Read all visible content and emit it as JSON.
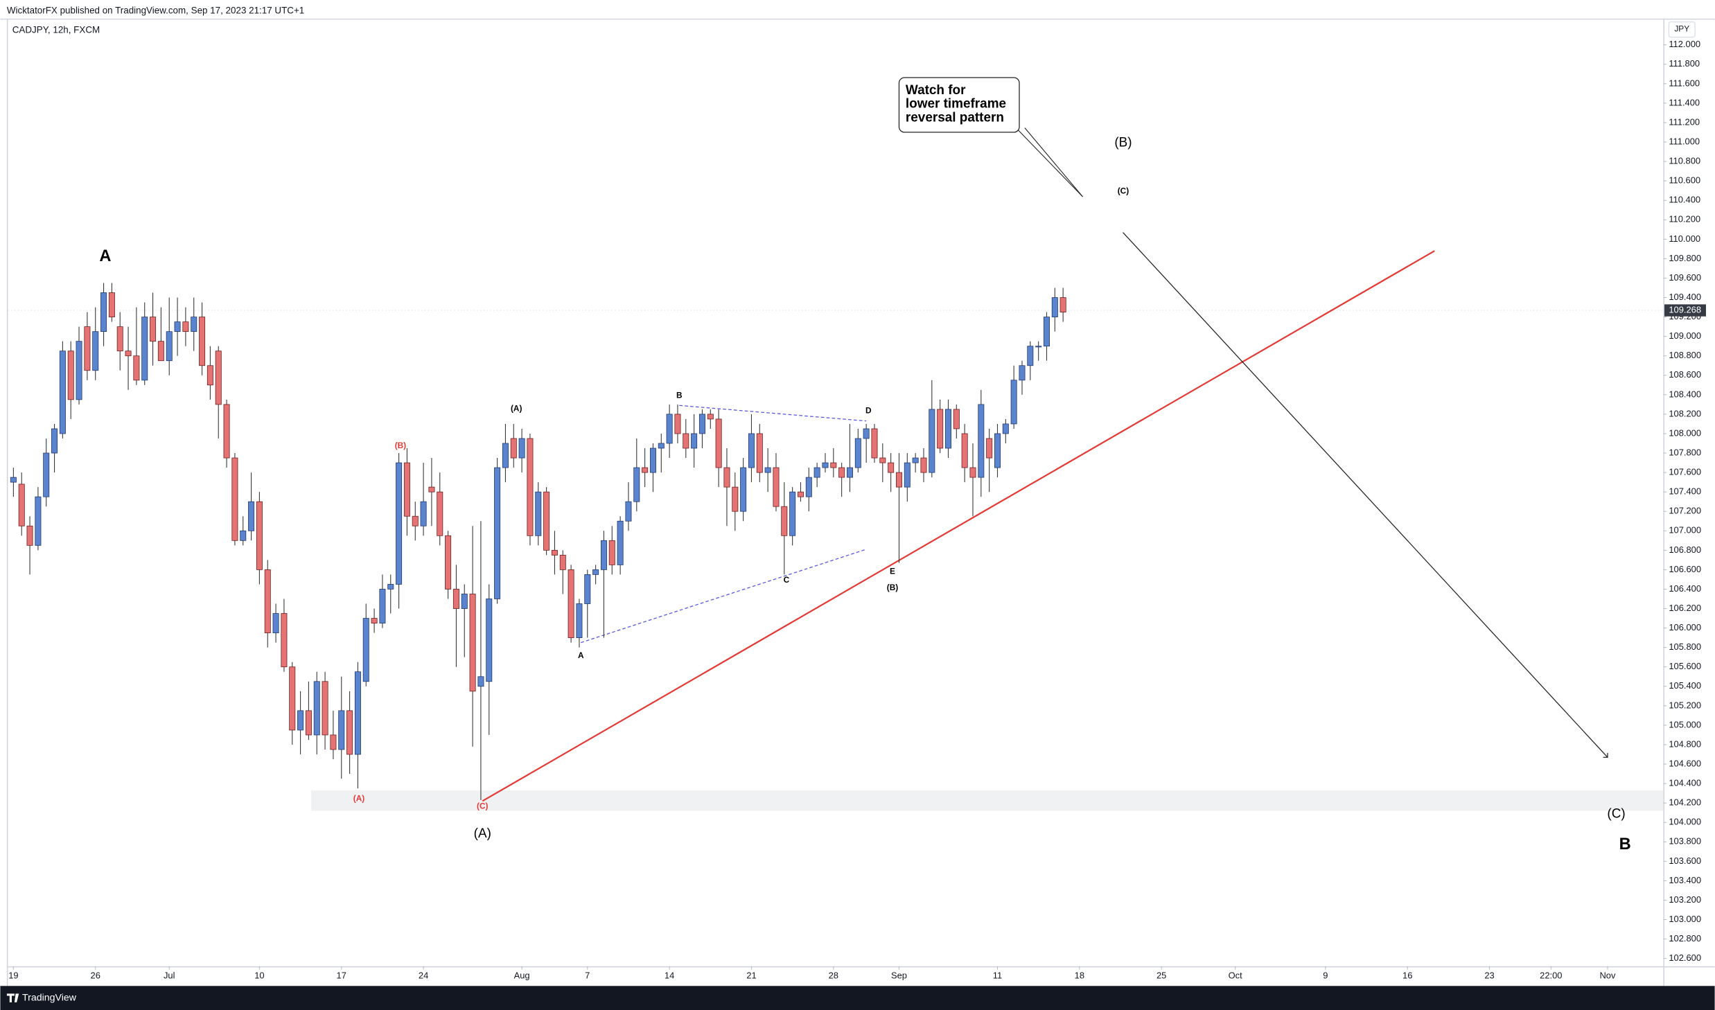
{
  "chart_data": {
    "type": "candlestick",
    "publisher": "WicktatorFX published on TradingView.com, Sep 17, 2023 21:17 UTC+1",
    "title": "CADJPY, 12h, FXCM",
    "y_unit": "JPY",
    "footer": "TradingView",
    "up_color": "#5b84cf",
    "down_color": "#e57373",
    "ylim": [
      102.52,
      112.27
    ],
    "yticks": [
      {
        "value": 112,
        "label": "112.000"
      },
      {
        "value": 111.8,
        "label": "111.800"
      },
      {
        "value": 111.6,
        "label": "111.600"
      },
      {
        "value": 111.4,
        "label": "111.400"
      },
      {
        "value": 111.2,
        "label": "111.200"
      },
      {
        "value": 111,
        "label": "111.000"
      },
      {
        "value": 110.8,
        "label": "110.800"
      },
      {
        "value": 110.6,
        "label": "110.600"
      },
      {
        "value": 110.4,
        "label": "110.400"
      },
      {
        "value": 110.2,
        "label": "110.200"
      },
      {
        "value": 110,
        "label": "110.000"
      },
      {
        "value": 109.8,
        "label": "109.800"
      },
      {
        "value": 109.6,
        "label": "109.600"
      },
      {
        "value": 109.4,
        "label": "109.400"
      },
      {
        "value": 109.2,
        "label": "109.200"
      },
      {
        "value": 109,
        "label": "109.000"
      },
      {
        "value": 108.8,
        "label": "108.800"
      },
      {
        "value": 108.6,
        "label": "108.600"
      },
      {
        "value": 108.4,
        "label": "108.400"
      },
      {
        "value": 108.2,
        "label": "108.200"
      },
      {
        "value": 108,
        "label": "108.000"
      },
      {
        "value": 107.8,
        "label": "107.800"
      },
      {
        "value": 107.6,
        "label": "107.600"
      },
      {
        "value": 107.4,
        "label": "107.400"
      },
      {
        "value": 107.2,
        "label": "107.200"
      },
      {
        "value": 107,
        "label": "107.000"
      },
      {
        "value": 106.8,
        "label": "106.800"
      },
      {
        "value": 106.6,
        "label": "106.600"
      },
      {
        "value": 106.4,
        "label": "106.400"
      },
      {
        "value": 106.2,
        "label": "106.200"
      },
      {
        "value": 106,
        "label": "106.000"
      },
      {
        "value": 105.8,
        "label": "105.800"
      },
      {
        "value": 105.6,
        "label": "105.600"
      },
      {
        "value": 105.4,
        "label": "105.400"
      },
      {
        "value": 105.2,
        "label": "105.200"
      },
      {
        "value": 105,
        "label": "105.000"
      },
      {
        "value": 104.8,
        "label": "104.800"
      },
      {
        "value": 104.6,
        "label": "104.600"
      },
      {
        "value": 104.4,
        "label": "104.400"
      },
      {
        "value": 104.2,
        "label": "104.200"
      },
      {
        "value": 104,
        "label": "104.000"
      },
      {
        "value": 103.8,
        "label": "103.800"
      },
      {
        "value": 103.6,
        "label": "103.600"
      },
      {
        "value": 103.4,
        "label": "103.400"
      },
      {
        "value": 103.2,
        "label": "103.200"
      },
      {
        "value": 103,
        "label": "103.000"
      },
      {
        "value": 102.8,
        "label": "102.800"
      },
      {
        "value": 102.6,
        "label": "102.600"
      }
    ],
    "xlim": [
      -0.67,
      201.2
    ],
    "xticks": [
      {
        "value": 0,
        "label": "19"
      },
      {
        "value": 10,
        "label": "26"
      },
      {
        "value": 19,
        "label": "Jul"
      },
      {
        "value": 30,
        "label": "10"
      },
      {
        "value": 40,
        "label": "17"
      },
      {
        "value": 50,
        "label": "24"
      },
      {
        "value": 62,
        "label": "Aug"
      },
      {
        "value": 70,
        "label": "7"
      },
      {
        "value": 80,
        "label": "14"
      },
      {
        "value": 90,
        "label": "21"
      },
      {
        "value": 100,
        "label": "28"
      },
      {
        "value": 108,
        "label": "Sep"
      },
      {
        "value": 120,
        "label": "11"
      },
      {
        "value": 130,
        "label": "18"
      },
      {
        "value": 140,
        "label": "25"
      },
      {
        "value": 149,
        "label": "Oct"
      },
      {
        "value": 160,
        "label": "9"
      },
      {
        "value": 170,
        "label": "16"
      },
      {
        "value": 180,
        "label": "23"
      },
      {
        "value": 187.5,
        "label": "22:00"
      },
      {
        "value": 194.4,
        "label": "Nov"
      }
    ],
    "last_price": 109.268,
    "ohlc": [
      [
        107.5,
        107.65,
        107.35,
        107.55
      ],
      [
        107.48,
        107.6,
        106.95,
        107.05
      ],
      [
        107.05,
        107.15,
        106.55,
        106.85
      ],
      [
        106.85,
        107.45,
        106.8,
        107.35
      ],
      [
        107.35,
        107.95,
        107.25,
        107.8
      ],
      [
        107.8,
        108.1,
        107.6,
        108.05
      ],
      [
        108.0,
        108.95,
        107.95,
        108.85
      ],
      [
        108.85,
        108.95,
        108.15,
        108.35
      ],
      [
        108.35,
        109.1,
        108.3,
        108.95
      ],
      [
        109.1,
        109.25,
        108.55,
        108.65
      ],
      [
        108.65,
        109.3,
        108.55,
        109.05
      ],
      [
        109.05,
        109.55,
        108.9,
        109.45
      ],
      [
        109.45,
        109.55,
        109.15,
        109.2
      ],
      [
        109.1,
        109.25,
        108.65,
        108.85
      ],
      [
        108.85,
        109.1,
        108.45,
        108.8
      ],
      [
        108.8,
        109.3,
        108.5,
        108.55
      ],
      [
        108.55,
        109.35,
        108.5,
        109.2
      ],
      [
        109.2,
        109.45,
        108.7,
        108.95
      ],
      [
        108.95,
        109.3,
        108.75,
        108.75
      ],
      [
        108.75,
        109.4,
        108.6,
        109.05
      ],
      [
        109.05,
        109.4,
        108.8,
        109.15
      ],
      [
        109.15,
        109.3,
        108.9,
        109.05
      ],
      [
        109.05,
        109.4,
        108.85,
        109.2
      ],
      [
        109.2,
        109.35,
        108.6,
        108.7
      ],
      [
        108.7,
        108.9,
        108.35,
        108.5
      ],
      [
        108.85,
        108.9,
        107.95,
        108.3
      ],
      [
        108.3,
        108.35,
        107.65,
        107.75
      ],
      [
        107.75,
        107.8,
        106.85,
        106.9
      ],
      [
        106.9,
        107.15,
        106.85,
        107.0
      ],
      [
        107.0,
        107.6,
        106.9,
        107.3
      ],
      [
        107.3,
        107.4,
        106.45,
        106.6
      ],
      [
        106.6,
        106.7,
        105.8,
        105.95
      ],
      [
        105.95,
        106.25,
        105.85,
        106.15
      ],
      [
        106.15,
        106.3,
        105.55,
        105.6
      ],
      [
        105.6,
        105.65,
        104.8,
        104.95
      ],
      [
        104.95,
        105.35,
        104.7,
        105.15
      ],
      [
        105.15,
        105.45,
        104.85,
        104.9
      ],
      [
        104.9,
        105.55,
        104.7,
        105.45
      ],
      [
        105.45,
        105.55,
        104.75,
        104.9
      ],
      [
        104.9,
        105.15,
        104.65,
        104.75
      ],
      [
        104.75,
        105.5,
        104.45,
        105.15
      ],
      [
        105.15,
        105.35,
        104.5,
        104.7
      ],
      [
        104.7,
        105.65,
        104.35,
        105.55
      ],
      [
        105.45,
        106.25,
        105.4,
        106.1
      ],
      [
        106.1,
        106.2,
        105.95,
        106.05
      ],
      [
        106.05,
        106.55,
        106.0,
        106.4
      ],
      [
        106.4,
        106.55,
        106.15,
        106.45
      ],
      [
        106.45,
        107.8,
        106.2,
        107.7
      ],
      [
        107.7,
        107.85,
        106.95,
        107.15
      ],
      [
        107.15,
        107.3,
        106.9,
        107.05
      ],
      [
        107.05,
        107.7,
        106.95,
        107.3
      ],
      [
        107.45,
        107.75,
        107.05,
        107.4
      ],
      [
        107.4,
        107.6,
        106.85,
        106.95
      ],
      [
        106.95,
        107.0,
        106.3,
        106.4
      ],
      [
        106.4,
        106.65,
        105.6,
        106.2
      ],
      [
        106.2,
        106.45,
        105.7,
        106.35
      ],
      [
        106.35,
        107.05,
        104.78,
        105.35
      ],
      [
        105.4,
        107.1,
        104.23,
        105.5
      ],
      [
        105.45,
        106.45,
        104.9,
        106.3
      ],
      [
        106.3,
        107.75,
        106.25,
        107.65
      ],
      [
        107.65,
        108.1,
        107.5,
        107.9
      ],
      [
        107.95,
        108.1,
        107.65,
        107.75
      ],
      [
        107.75,
        108.05,
        107.6,
        107.95
      ],
      [
        107.95,
        108.0,
        106.85,
        106.95
      ],
      [
        106.95,
        107.5,
        106.85,
        107.4
      ],
      [
        107.4,
        107.45,
        106.75,
        106.8
      ],
      [
        106.8,
        107.0,
        106.55,
        106.75
      ],
      [
        106.75,
        106.8,
        106.35,
        106.6
      ],
      [
        106.6,
        106.65,
        105.85,
        105.9
      ],
      [
        105.9,
        106.3,
        105.8,
        106.25
      ],
      [
        106.25,
        106.6,
        105.9,
        106.55
      ],
      [
        106.55,
        106.65,
        106.45,
        106.6
      ],
      [
        106.6,
        107.0,
        105.9,
        106.9
      ],
      [
        106.9,
        107.05,
        106.55,
        106.65
      ],
      [
        106.65,
        107.15,
        106.55,
        107.1
      ],
      [
        107.1,
        107.5,
        107.0,
        107.3
      ],
      [
        107.3,
        107.95,
        107.2,
        107.65
      ],
      [
        107.65,
        107.85,
        107.45,
        107.6
      ],
      [
        107.6,
        107.9,
        107.4,
        107.85
      ],
      [
        107.85,
        108.0,
        107.6,
        107.9
      ],
      [
        107.9,
        108.3,
        107.75,
        108.2
      ],
      [
        108.2,
        108.3,
        107.9,
        108.0
      ],
      [
        108.0,
        108.15,
        107.75,
        107.85
      ],
      [
        107.85,
        108.2,
        107.65,
        108.0
      ],
      [
        108.0,
        108.25,
        107.85,
        108.2
      ],
      [
        108.2,
        108.25,
        108.05,
        108.15
      ],
      [
        108.15,
        108.25,
        107.45,
        107.65
      ],
      [
        107.65,
        107.85,
        107.05,
        107.45
      ],
      [
        107.45,
        107.6,
        107.0,
        107.2
      ],
      [
        107.2,
        107.75,
        107.1,
        107.65
      ],
      [
        107.65,
        108.2,
        107.5,
        108.0
      ],
      [
        108.0,
        108.1,
        107.5,
        107.6
      ],
      [
        107.6,
        107.85,
        107.4,
        107.65
      ],
      [
        107.65,
        107.8,
        107.2,
        107.25
      ],
      [
        107.25,
        107.5,
        106.55,
        106.95
      ],
      [
        106.95,
        107.45,
        106.85,
        107.4
      ],
      [
        107.4,
        107.5,
        107.3,
        107.35
      ],
      [
        107.35,
        107.65,
        107.2,
        107.55
      ],
      [
        107.55,
        107.7,
        107.45,
        107.65
      ],
      [
        107.65,
        107.8,
        107.6,
        107.7
      ],
      [
        107.7,
        107.85,
        107.55,
        107.65
      ],
      [
        107.65,
        107.7,
        107.35,
        107.55
      ],
      [
        107.55,
        108.1,
        107.4,
        107.65
      ],
      [
        107.65,
        108.05,
        107.6,
        107.95
      ],
      [
        107.95,
        108.1,
        107.7,
        108.05
      ],
      [
        108.05,
        108.1,
        107.7,
        107.75
      ],
      [
        107.75,
        107.9,
        107.5,
        107.7
      ],
      [
        107.7,
        107.8,
        107.4,
        107.6
      ],
      [
        107.6,
        107.8,
        106.67,
        107.45
      ],
      [
        107.45,
        107.8,
        107.3,
        107.7
      ],
      [
        107.7,
        107.8,
        107.6,
        107.75
      ],
      [
        107.75,
        107.85,
        107.5,
        107.6
      ],
      [
        107.6,
        108.55,
        107.55,
        108.25
      ],
      [
        108.25,
        108.35,
        107.8,
        107.85
      ],
      [
        107.85,
        108.35,
        107.75,
        108.25
      ],
      [
        108.25,
        108.3,
        107.95,
        108.05
      ],
      [
        108.0,
        108.1,
        107.5,
        107.65
      ],
      [
        107.65,
        107.9,
        107.15,
        107.55
      ],
      [
        107.55,
        108.45,
        107.35,
        108.3
      ],
      [
        107.95,
        108.05,
        107.4,
        107.75
      ],
      [
        107.65,
        108.1,
        107.55,
        108.0
      ],
      [
        108.0,
        108.15,
        107.9,
        108.1
      ],
      [
        108.1,
        108.7,
        108.05,
        108.55
      ],
      [
        108.55,
        108.75,
        108.4,
        108.7
      ],
      [
        108.7,
        108.95,
        108.55,
        108.9
      ],
      [
        108.9,
        108.95,
        108.75,
        108.9
      ],
      [
        108.9,
        109.25,
        108.75,
        109.2
      ],
      [
        109.2,
        109.5,
        109.05,
        109.4
      ],
      [
        109.4,
        109.5,
        109.15,
        109.25
      ]
    ],
    "zone": {
      "x": [
        36.3,
        201.2
      ],
      "y": [
        104.12,
        104.33
      ],
      "color": "#f0f1f3"
    },
    "drawings": [
      {
        "x": [
          57.2,
          173.3
        ],
        "y": [
          104.22,
          109.88
        ],
        "color": "#e53935"
      },
      {
        "x": [
          135.3,
          194.4
        ],
        "y": [
          110.07,
          104.67
        ],
        "color": "#222222"
      },
      {
        "x": [
          81.2,
          104
        ],
        "y": [
          108.29,
          108.13
        ],
        "color": "#5555dd"
      },
      {
        "x": [
          69.2,
          104
        ],
        "y": [
          105.85,
          106.81
        ],
        "color": "#5555dd"
      }
    ],
    "annotations": [
      "A",
      "(B)",
      "(A)",
      "(C)",
      "(A)",
      "(A)",
      "B",
      "A",
      "C",
      "D",
      "E",
      "(B)",
      "(B)",
      "(C)",
      "(C)",
      "B"
    ],
    "callout": [
      "Watch for",
      "lower timeframe",
      "reversal pattern"
    ]
  }
}
